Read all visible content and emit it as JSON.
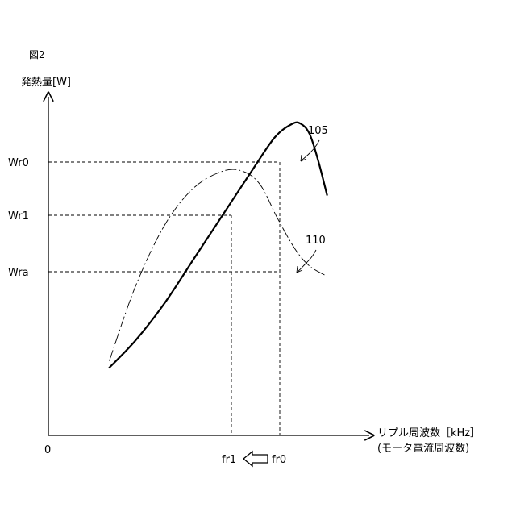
{
  "figure": {
    "label": "図2"
  },
  "chart_data": {
    "type": "line",
    "ylabel": "発熱量[W]",
    "xlabel_line1": "リプル周波数［kHz］",
    "xlabel_line2": "(モータ電流周波数)",
    "origin_label": "0",
    "y_ticks": [
      {
        "key": "Wr0",
        "label": "Wr0"
      },
      {
        "key": "Wr1",
        "label": "Wr1"
      },
      {
        "key": "Wra",
        "label": "Wra"
      }
    ],
    "x_ticks": [
      {
        "key": "fr1",
        "label": "fr1"
      },
      {
        "key": "fr0",
        "label": "fr0"
      }
    ],
    "arrow_direction": "left",
    "series": [
      {
        "id": "105",
        "name": "105",
        "style": "solid",
        "x": [
          0.21,
          0.3,
          0.4,
          0.5,
          0.6,
          0.7,
          0.78,
          0.84,
          0.87,
          0.9,
          0.93,
          0.96
        ],
        "y": [
          0.2,
          0.28,
          0.39,
          0.52,
          0.65,
          0.78,
          0.88,
          0.92,
          0.92,
          0.89,
          0.81,
          0.71
        ]
      },
      {
        "id": "110",
        "name": "110",
        "style": "dashdot",
        "x": [
          0.21,
          0.3,
          0.4,
          0.5,
          0.6,
          0.67,
          0.73,
          0.79,
          0.85,
          0.9,
          0.96
        ],
        "y": [
          0.22,
          0.44,
          0.62,
          0.73,
          0.78,
          0.78,
          0.74,
          0.64,
          0.55,
          0.5,
          0.47
        ]
      }
    ]
  }
}
